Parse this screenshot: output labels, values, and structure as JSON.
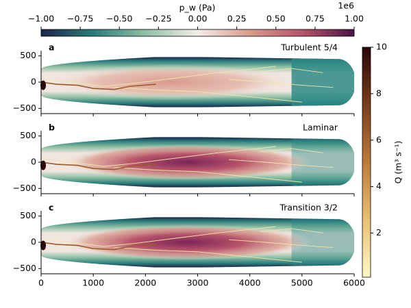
{
  "chart_data": [
    {
      "type": "field",
      "label": "a",
      "title": "Turbulent 5/4",
      "xlim": [
        0,
        6000
      ],
      "ylim": [
        -600,
        600
      ],
      "xticks": [
        0,
        1000,
        2000,
        3000,
        4000,
        5000,
        6000
      ],
      "yticks": [
        {
          "value": -500,
          "label": "−500"
        },
        0,
        500
      ]
    },
    {
      "type": "field",
      "label": "b",
      "title": "Laminar",
      "xlim": [
        0,
        6000
      ],
      "ylim": [
        -600,
        600
      ],
      "xticks": [
        0,
        1000,
        2000,
        3000,
        4000,
        5000,
        6000
      ],
      "yticks": [
        {
          "value": -500,
          "label": "−500"
        },
        0,
        500
      ]
    },
    {
      "type": "field",
      "label": "c",
      "title": "Transition 3/2",
      "xlim": [
        0,
        6000
      ],
      "ylim": [
        -600,
        600
      ],
      "xticks": [
        0,
        1000,
        2000,
        3000,
        4000,
        5000,
        6000
      ],
      "yticks": [
        {
          "value": -500,
          "label": "−500"
        },
        0,
        500
      ]
    }
  ],
  "colorbar_pressure": {
    "label": "p_w (Pa)",
    "offset_label": "1e6",
    "lim": [
      -1,
      1
    ],
    "ticks": [
      {
        "value": -1,
        "label": "−1.00"
      },
      {
        "value": -0.75,
        "label": "−0.75"
      },
      {
        "value": -0.5,
        "label": "−0.50"
      },
      {
        "value": -0.25,
        "label": "−0.25"
      },
      {
        "value": 0,
        "label": "0.00"
      },
      0.25,
      {
        "value": 0.5,
        "label": "0.50"
      },
      0.75,
      {
        "value": 1,
        "label": "1.00"
      }
    ],
    "colors": [
      "#1b2447",
      "#2a7c7c",
      "#8fc0a4",
      "#f3ede8",
      "#d89a8c",
      "#b8546a",
      "#4a1445"
    ]
  },
  "colorbar_discharge": {
    "label": "Q (m³ s⁻¹)",
    "lim": [
      0.1,
      10
    ],
    "ticks": [
      2,
      4,
      6,
      8,
      10
    ],
    "colors": [
      "#fff8c4",
      "#e8c070",
      "#c07838",
      "#7a3e1c",
      "#2a0608"
    ]
  }
}
